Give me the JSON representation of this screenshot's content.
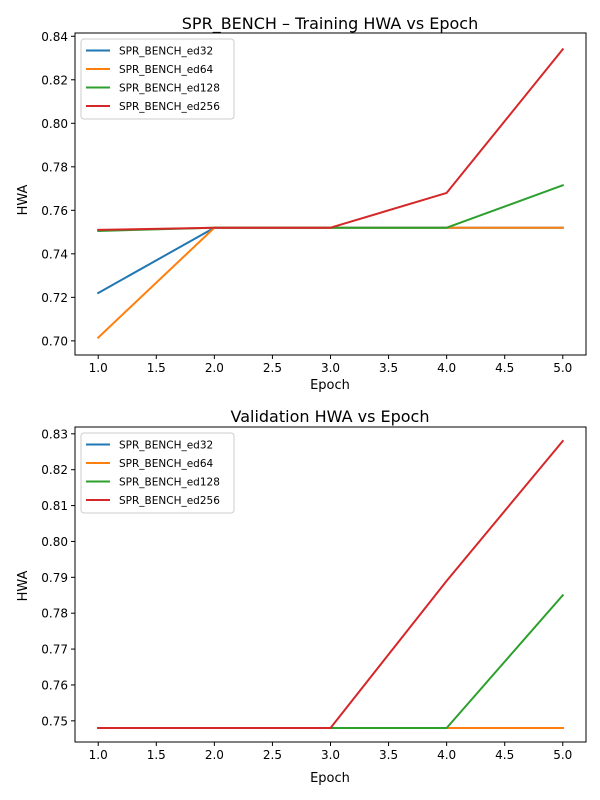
{
  "figure": {
    "background": "#ffffff"
  },
  "chart_data": [
    {
      "type": "line",
      "title": "SPR_BENCH – Training HWA vs Epoch",
      "xlabel": "Epoch",
      "ylabel": "HWA",
      "xlim": [
        0.8,
        5.2
      ],
      "ylim": [
        0.6935,
        0.8415
      ],
      "xticks": [
        1.0,
        1.5,
        2.0,
        2.5,
        3.0,
        3.5,
        4.0,
        4.5,
        5.0
      ],
      "xtick_labels": [
        "1.0",
        "1.5",
        "2.0",
        "2.5",
        "3.0",
        "3.5",
        "4.0",
        "4.5",
        "5.0"
      ],
      "yticks": [
        0.7,
        0.72,
        0.74,
        0.76,
        0.78,
        0.8,
        0.82,
        0.84
      ],
      "ytick_labels": [
        "0.70",
        "0.72",
        "0.74",
        "0.76",
        "0.78",
        "0.80",
        "0.82",
        "0.84"
      ],
      "legend_position": "upper-left",
      "x": [
        1,
        2,
        3,
        4,
        5
      ],
      "series": [
        {
          "name": "SPR_BENCH_ed32",
          "color": "#1f77b4",
          "values": [
            0.722,
            0.752,
            0.752,
            0.752,
            0.752
          ]
        },
        {
          "name": "SPR_BENCH_ed64",
          "color": "#ff7f0e",
          "values": [
            0.7015,
            0.752,
            0.752,
            0.752,
            0.752
          ]
        },
        {
          "name": "SPR_BENCH_ed128",
          "color": "#2ca02c",
          "values": [
            0.7505,
            0.752,
            0.752,
            0.752,
            0.7715
          ]
        },
        {
          "name": "SPR_BENCH_ed256",
          "color": "#d62728",
          "values": [
            0.751,
            0.752,
            0.752,
            0.768,
            0.834
          ]
        }
      ]
    },
    {
      "type": "line",
      "title": "Validation HWA vs Epoch",
      "xlabel": "Epoch",
      "ylabel": "HWA",
      "xlim": [
        0.8,
        5.2
      ],
      "ylim": [
        0.7441,
        0.8319
      ],
      "xticks": [
        1.0,
        1.5,
        2.0,
        2.5,
        3.0,
        3.5,
        4.0,
        4.5,
        5.0
      ],
      "xtick_labels": [
        "1.0",
        "1.5",
        "2.0",
        "2.5",
        "3.0",
        "3.5",
        "4.0",
        "4.5",
        "5.0"
      ],
      "yticks": [
        0.75,
        0.76,
        0.77,
        0.78,
        0.79,
        0.8,
        0.81,
        0.82,
        0.83
      ],
      "ytick_labels": [
        "0.75",
        "0.76",
        "0.77",
        "0.78",
        "0.79",
        "0.80",
        "0.81",
        "0.82",
        "0.83"
      ],
      "legend_position": "upper-left",
      "x": [
        1,
        2,
        3,
        4,
        5
      ],
      "series": [
        {
          "name": "SPR_BENCH_ed32",
          "color": "#1f77b4",
          "values": [
            0.748,
            0.748,
            0.748,
            0.748,
            0.748
          ]
        },
        {
          "name": "SPR_BENCH_ed64",
          "color": "#ff7f0e",
          "values": [
            0.748,
            0.748,
            0.748,
            0.748,
            0.748
          ]
        },
        {
          "name": "SPR_BENCH_ed128",
          "color": "#2ca02c",
          "values": [
            0.748,
            0.748,
            0.748,
            0.748,
            0.785
          ]
        },
        {
          "name": "SPR_BENCH_ed256",
          "color": "#d62728",
          "values": [
            0.748,
            0.748,
            0.748,
            0.789,
            0.828
          ]
        }
      ]
    }
  ]
}
